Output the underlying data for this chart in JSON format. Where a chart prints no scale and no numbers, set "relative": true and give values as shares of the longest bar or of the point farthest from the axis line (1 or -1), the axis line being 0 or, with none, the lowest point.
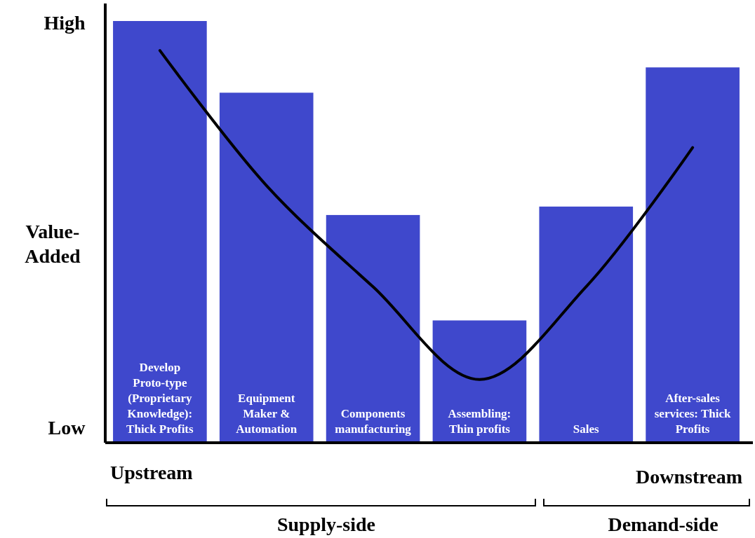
{
  "chart_data": {
    "type": "bar",
    "relative": true,
    "ylabel": "Value-Added",
    "categories": [
      "Develop Proto-type (Proprietary Knowledge): Thick Profits",
      "Equipment Maker & Automation",
      "Components manufacturing",
      "Assembling: Thin profits",
      "Sales",
      "After-sales services: Thick Profits"
    ],
    "series": [
      {
        "color": "#3f48cc",
        "values": [
          1,
          0.83,
          0.54,
          0.29,
          0.56,
          0.89
        ]
      },
      {
        "type": "line",
        "color": "#000000",
        "values": [
          0.93,
          0.61,
          0.37,
          0.15,
          0.37,
          0.7
        ]
      }
    ],
    "annotations": [
      "High",
      "Low",
      "Upstream",
      "Downstream",
      "Supply-side",
      "Demand-side"
    ]
  }
}
